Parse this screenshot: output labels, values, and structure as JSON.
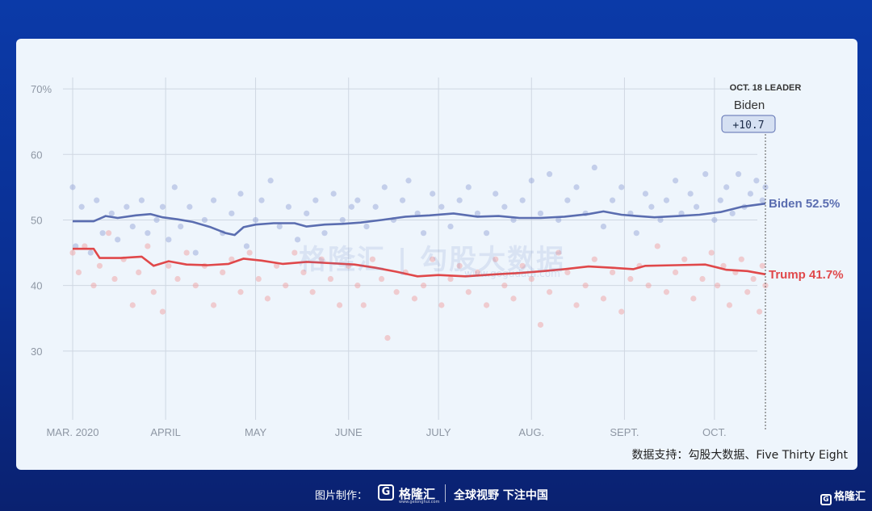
{
  "chart_data": {
    "type": "line",
    "x_tick_labels": [
      "MAR. 2020",
      "APRIL",
      "MAY",
      "JUNE",
      "JULY",
      "AUG.",
      "SEPT.",
      "OCT."
    ],
    "y_tick_labels": [
      "70%",
      "60",
      "50",
      "40",
      "30"
    ],
    "y_tick_values": [
      70,
      60,
      50,
      40,
      30
    ],
    "ylim": [
      20,
      71
    ],
    "xlim": [
      "2020-03-01",
      "2020-10-18"
    ],
    "grid": true,
    "leader": {
      "heading": "OCT. 18 LEADER",
      "name": "Biden",
      "margin": "+10.7",
      "date": "2020-10-18"
    },
    "series": [
      {
        "name": "Biden",
        "end_label": "Biden 52.5%",
        "color": "#5a6db0",
        "dot_color": "#8ea0d4",
        "points": [
          [
            "2020-03-01",
            49.8
          ],
          [
            "2020-03-08",
            49.8
          ],
          [
            "2020-03-12",
            50.6
          ],
          [
            "2020-03-16",
            50.3
          ],
          [
            "2020-03-22",
            50.7
          ],
          [
            "2020-03-27",
            50.9
          ],
          [
            "2020-03-31",
            50.4
          ],
          [
            "2020-04-05",
            50.1
          ],
          [
            "2020-04-10",
            49.7
          ],
          [
            "2020-04-16",
            48.9
          ],
          [
            "2020-04-21",
            48.0
          ],
          [
            "2020-04-24",
            47.7
          ],
          [
            "2020-04-27",
            48.9
          ],
          [
            "2020-05-01",
            49.3
          ],
          [
            "2020-05-07",
            49.5
          ],
          [
            "2020-05-14",
            49.5
          ],
          [
            "2020-05-18",
            49.0
          ],
          [
            "2020-05-24",
            49.3
          ],
          [
            "2020-05-30",
            49.4
          ],
          [
            "2020-06-05",
            49.6
          ],
          [
            "2020-06-12",
            50.0
          ],
          [
            "2020-06-20",
            50.5
          ],
          [
            "2020-06-28",
            50.7
          ],
          [
            "2020-07-06",
            51.0
          ],
          [
            "2020-07-14",
            50.5
          ],
          [
            "2020-07-21",
            50.6
          ],
          [
            "2020-07-28",
            50.3
          ],
          [
            "2020-08-04",
            50.3
          ],
          [
            "2020-08-12",
            50.5
          ],
          [
            "2020-08-20",
            50.9
          ],
          [
            "2020-08-25",
            51.3
          ],
          [
            "2020-08-31",
            50.8
          ],
          [
            "2020-09-05",
            50.6
          ],
          [
            "2020-09-11",
            50.4
          ],
          [
            "2020-09-19",
            50.6
          ],
          [
            "2020-09-26",
            50.8
          ],
          [
            "2020-10-03",
            51.2
          ],
          [
            "2020-10-10",
            52.0
          ],
          [
            "2020-10-18",
            52.5
          ]
        ],
        "polls": [
          [
            "2020-03-01",
            55.0
          ],
          [
            "2020-03-02",
            46.0
          ],
          [
            "2020-03-04",
            52.0
          ],
          [
            "2020-03-07",
            45.0
          ],
          [
            "2020-03-09",
            53.0
          ],
          [
            "2020-03-11",
            48.0
          ],
          [
            "2020-03-14",
            51.0
          ],
          [
            "2020-03-16",
            47.0
          ],
          [
            "2020-03-19",
            52.0
          ],
          [
            "2020-03-21",
            49.0
          ],
          [
            "2020-03-24",
            53.0
          ],
          [
            "2020-03-26",
            48.0
          ],
          [
            "2020-03-29",
            50.0
          ],
          [
            "2020-03-31",
            52.0
          ],
          [
            "2020-04-02",
            47.0
          ],
          [
            "2020-04-04",
            55.0
          ],
          [
            "2020-04-06",
            49.0
          ],
          [
            "2020-04-09",
            52.0
          ],
          [
            "2020-04-11",
            45.0
          ],
          [
            "2020-04-14",
            50.0
          ],
          [
            "2020-04-17",
            53.0
          ],
          [
            "2020-04-20",
            48.0
          ],
          [
            "2020-04-23",
            51.0
          ],
          [
            "2020-04-26",
            54.0
          ],
          [
            "2020-04-28",
            46.0
          ],
          [
            "2020-05-01",
            50.0
          ],
          [
            "2020-05-03",
            53.0
          ],
          [
            "2020-05-06",
            56.0
          ],
          [
            "2020-05-09",
            49.0
          ],
          [
            "2020-05-12",
            52.0
          ],
          [
            "2020-05-15",
            47.0
          ],
          [
            "2020-05-18",
            51.0
          ],
          [
            "2020-05-21",
            53.0
          ],
          [
            "2020-05-24",
            48.0
          ],
          [
            "2020-05-27",
            54.0
          ],
          [
            "2020-05-30",
            50.0
          ],
          [
            "2020-06-02",
            52.0
          ],
          [
            "2020-06-04",
            53.0
          ],
          [
            "2020-06-07",
            49.0
          ],
          [
            "2020-06-10",
            52.0
          ],
          [
            "2020-06-13",
            55.0
          ],
          [
            "2020-06-16",
            50.0
          ],
          [
            "2020-06-19",
            53.0
          ],
          [
            "2020-06-21",
            56.0
          ],
          [
            "2020-06-24",
            51.0
          ],
          [
            "2020-06-26",
            48.0
          ],
          [
            "2020-06-29",
            54.0
          ],
          [
            "2020-07-02",
            52.0
          ],
          [
            "2020-07-05",
            49.0
          ],
          [
            "2020-07-08",
            53.0
          ],
          [
            "2020-07-11",
            55.0
          ],
          [
            "2020-07-14",
            51.0
          ],
          [
            "2020-07-17",
            48.0
          ],
          [
            "2020-07-20",
            54.0
          ],
          [
            "2020-07-23",
            52.0
          ],
          [
            "2020-07-26",
            50.0
          ],
          [
            "2020-07-29",
            53.0
          ],
          [
            "2020-08-01",
            56.0
          ],
          [
            "2020-08-04",
            51.0
          ],
          [
            "2020-08-07",
            57.0
          ],
          [
            "2020-08-10",
            50.0
          ],
          [
            "2020-08-13",
            53.0
          ],
          [
            "2020-08-16",
            55.0
          ],
          [
            "2020-08-19",
            51.0
          ],
          [
            "2020-08-22",
            58.0
          ],
          [
            "2020-08-25",
            49.0
          ],
          [
            "2020-08-28",
            53.0
          ],
          [
            "2020-08-31",
            55.0
          ],
          [
            "2020-09-03",
            51.0
          ],
          [
            "2020-09-05",
            48.0
          ],
          [
            "2020-09-08",
            54.0
          ],
          [
            "2020-09-10",
            52.0
          ],
          [
            "2020-09-13",
            50.0
          ],
          [
            "2020-09-15",
            53.0
          ],
          [
            "2020-09-18",
            56.0
          ],
          [
            "2020-09-20",
            51.0
          ],
          [
            "2020-09-23",
            54.0
          ],
          [
            "2020-09-25",
            52.0
          ],
          [
            "2020-09-28",
            57.0
          ],
          [
            "2020-10-01",
            50.0
          ],
          [
            "2020-10-03",
            53.0
          ],
          [
            "2020-10-05",
            55.0
          ],
          [
            "2020-10-07",
            51.0
          ],
          [
            "2020-10-09",
            57.0
          ],
          [
            "2020-10-11",
            52.0
          ],
          [
            "2020-10-13",
            54.0
          ],
          [
            "2020-10-15",
            56.0
          ],
          [
            "2020-10-17",
            53.0
          ],
          [
            "2020-10-18",
            55.0
          ]
        ]
      },
      {
        "name": "Trump",
        "end_label": "Trump 41.7%",
        "color": "#e0484a",
        "dot_color": "#f09a9a",
        "points": [
          [
            "2020-03-01",
            45.6
          ],
          [
            "2020-03-08",
            45.6
          ],
          [
            "2020-03-10",
            44.2
          ],
          [
            "2020-03-17",
            44.2
          ],
          [
            "2020-03-24",
            44.4
          ],
          [
            "2020-03-28",
            43.0
          ],
          [
            "2020-04-02",
            43.7
          ],
          [
            "2020-04-08",
            43.2
          ],
          [
            "2020-04-15",
            43.1
          ],
          [
            "2020-04-22",
            43.3
          ],
          [
            "2020-04-27",
            44.1
          ],
          [
            "2020-05-03",
            43.8
          ],
          [
            "2020-05-10",
            43.3
          ],
          [
            "2020-05-18",
            43.6
          ],
          [
            "2020-05-26",
            43.4
          ],
          [
            "2020-06-03",
            43.2
          ],
          [
            "2020-06-10",
            42.7
          ],
          [
            "2020-06-17",
            42.1
          ],
          [
            "2020-06-24",
            41.4
          ],
          [
            "2020-07-01",
            41.6
          ],
          [
            "2020-07-10",
            41.4
          ],
          [
            "2020-07-20",
            41.7
          ],
          [
            "2020-07-28",
            41.9
          ],
          [
            "2020-08-05",
            42.2
          ],
          [
            "2020-08-12",
            42.5
          ],
          [
            "2020-08-20",
            42.9
          ],
          [
            "2020-08-28",
            42.7
          ],
          [
            "2020-09-04",
            42.5
          ],
          [
            "2020-09-08",
            43.0
          ],
          [
            "2020-09-18",
            43.1
          ],
          [
            "2020-09-28",
            43.2
          ],
          [
            "2020-10-05",
            42.4
          ],
          [
            "2020-10-12",
            42.2
          ],
          [
            "2020-10-18",
            41.7
          ]
        ],
        "polls": [
          [
            "2020-03-01",
            45.0
          ],
          [
            "2020-03-03",
            42.0
          ],
          [
            "2020-03-05",
            46.0
          ],
          [
            "2020-03-08",
            40.0
          ],
          [
            "2020-03-10",
            43.0
          ],
          [
            "2020-03-13",
            48.0
          ],
          [
            "2020-03-15",
            41.0
          ],
          [
            "2020-03-18",
            44.0
          ],
          [
            "2020-03-21",
            37.0
          ],
          [
            "2020-03-23",
            42.0
          ],
          [
            "2020-03-26",
            46.0
          ],
          [
            "2020-03-28",
            39.0
          ],
          [
            "2020-03-31",
            36.0
          ],
          [
            "2020-04-02",
            43.0
          ],
          [
            "2020-04-05",
            41.0
          ],
          [
            "2020-04-08",
            45.0
          ],
          [
            "2020-04-11",
            40.0
          ],
          [
            "2020-04-14",
            43.0
          ],
          [
            "2020-04-17",
            37.0
          ],
          [
            "2020-04-20",
            42.0
          ],
          [
            "2020-04-23",
            44.0
          ],
          [
            "2020-04-26",
            39.0
          ],
          [
            "2020-04-29",
            45.0
          ],
          [
            "2020-05-02",
            41.0
          ],
          [
            "2020-05-05",
            38.0
          ],
          [
            "2020-05-08",
            43.0
          ],
          [
            "2020-05-11",
            40.0
          ],
          [
            "2020-05-14",
            45.0
          ],
          [
            "2020-05-17",
            42.0
          ],
          [
            "2020-05-20",
            39.0
          ],
          [
            "2020-05-23",
            44.0
          ],
          [
            "2020-05-26",
            41.0
          ],
          [
            "2020-05-29",
            37.0
          ],
          [
            "2020-06-01",
            43.0
          ],
          [
            "2020-06-04",
            40.0
          ],
          [
            "2020-06-06",
            37.0
          ],
          [
            "2020-06-09",
            44.0
          ],
          [
            "2020-06-12",
            41.0
          ],
          [
            "2020-06-14",
            32.0
          ],
          [
            "2020-06-17",
            39.0
          ],
          [
            "2020-06-20",
            42.0
          ],
          [
            "2020-06-23",
            38.0
          ],
          [
            "2020-06-26",
            40.0
          ],
          [
            "2020-06-29",
            44.0
          ],
          [
            "2020-07-02",
            37.0
          ],
          [
            "2020-07-05",
            41.0
          ],
          [
            "2020-07-08",
            43.0
          ],
          [
            "2020-07-11",
            39.0
          ],
          [
            "2020-07-14",
            42.0
          ],
          [
            "2020-07-17",
            37.0
          ],
          [
            "2020-07-20",
            44.0
          ],
          [
            "2020-07-23",
            40.0
          ],
          [
            "2020-07-26",
            38.0
          ],
          [
            "2020-07-29",
            43.0
          ],
          [
            "2020-08-01",
            41.0
          ],
          [
            "2020-08-04",
            34.0
          ],
          [
            "2020-08-07",
            39.0
          ],
          [
            "2020-08-10",
            45.0
          ],
          [
            "2020-08-13",
            42.0
          ],
          [
            "2020-08-16",
            37.0
          ],
          [
            "2020-08-19",
            40.0
          ],
          [
            "2020-08-22",
            44.0
          ],
          [
            "2020-08-25",
            38.0
          ],
          [
            "2020-08-28",
            42.0
          ],
          [
            "2020-08-31",
            36.0
          ],
          [
            "2020-09-03",
            41.0
          ],
          [
            "2020-09-06",
            43.0
          ],
          [
            "2020-09-09",
            40.0
          ],
          [
            "2020-09-12",
            46.0
          ],
          [
            "2020-09-15",
            39.0
          ],
          [
            "2020-09-18",
            42.0
          ],
          [
            "2020-09-21",
            44.0
          ],
          [
            "2020-09-24",
            38.0
          ],
          [
            "2020-09-27",
            41.0
          ],
          [
            "2020-09-30",
            45.0
          ],
          [
            "2020-10-02",
            40.0
          ],
          [
            "2020-10-04",
            43.0
          ],
          [
            "2020-10-06",
            37.0
          ],
          [
            "2020-10-08",
            42.0
          ],
          [
            "2020-10-10",
            44.0
          ],
          [
            "2020-10-12",
            39.0
          ],
          [
            "2020-10-14",
            41.0
          ],
          [
            "2020-10-16",
            36.0
          ],
          [
            "2020-10-17",
            43.0
          ],
          [
            "2020-10-18",
            40.0
          ]
        ]
      }
    ]
  },
  "watermark": {
    "text": "格隆汇 | 勾股大数据",
    "url": "www.gogudata.com"
  },
  "source_text": "数据支持：勾股大数据、Five Thirty Eight",
  "footer": {
    "credit": "图片制作：",
    "logo_glyph": "G",
    "brand": "格隆汇",
    "brand_url": "www.gelonghui.com",
    "slogan": "全球视野 下注中国"
  },
  "corner_logo": {
    "glyph": "G",
    "text": "格隆汇"
  }
}
